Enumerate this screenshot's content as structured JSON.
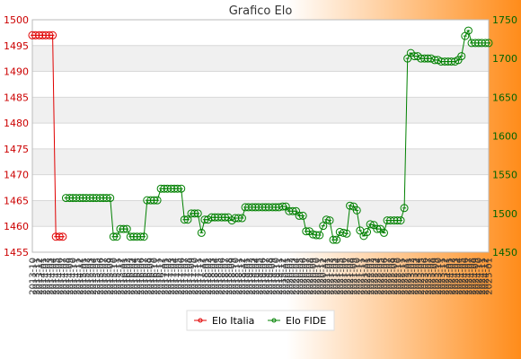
{
  "chart_data": {
    "type": "line",
    "title": "Grafico Elo",
    "left_axis": {
      "min": 1455,
      "max": 1500,
      "ticks": [
        1455,
        1460,
        1465,
        1470,
        1475,
        1480,
        1485,
        1490,
        1495,
        1500
      ]
    },
    "right_axis": {
      "min": 1450,
      "max": 1750,
      "ticks": [
        1450,
        1500,
        1550,
        1600,
        1650,
        1700,
        1750
      ]
    },
    "x_range": [
      2013.75,
      2025.0
    ],
    "x_ticks": [
      "2013-10",
      "2013-11",
      "2013-12",
      "2014-01",
      "2014-02",
      "2014-03",
      "2014-04",
      "2014-05",
      "2014-06",
      "2014-07",
      "2014-08",
      "2014-09",
      "2014-10",
      "2014-11",
      "2014-12",
      "2015-01",
      "2015-02",
      "2015-03",
      "2015-04",
      "2015-05",
      "2015-06",
      "2015-07",
      "2015-08",
      "2015-09",
      "2015-10",
      "2015-11",
      "2015-12",
      "2016-01",
      "2016-02",
      "2016-03",
      "2016-04",
      "2016-05",
      "2016-06",
      "2016-07",
      "2016-08",
      "2016-09",
      "2016-10",
      "2016-11",
      "2016-12",
      "2017-01",
      "2017-02",
      "2017-03",
      "2017-04",
      "2017-05",
      "2017-06",
      "2017-07",
      "2017-08",
      "2017-09",
      "2017-10",
      "2017-11",
      "2017-12",
      "2018-01",
      "2018-02",
      "2018-03",
      "2018-04",
      "2018-05",
      "2018-06",
      "2018-07",
      "2018-08",
      "2018-09",
      "2018-10",
      "2018-11",
      "2018-12",
      "2019-01",
      "2019-02",
      "2019-03",
      "2019-04",
      "2019-05",
      "2019-06",
      "2019-07",
      "2019-08",
      "2019-09",
      "2019-10",
      "2019-11",
      "2019-12",
      "2020-01",
      "2020-02",
      "2020-03",
      "2020-04",
      "2020-05",
      "2020-06",
      "2020-07",
      "2020-08",
      "2020-09",
      "2020-10",
      "2020-11",
      "2020-12",
      "2021-01",
      "2021-02",
      "2021-03",
      "2021-04",
      "2021-05",
      "2021-06",
      "2021-07",
      "2021-08",
      "2021-09",
      "2021-10",
      "2021-11",
      "2021-12",
      "2022-01",
      "2022-02",
      "2022-03",
      "2022-04",
      "2022-05",
      "2022-06",
      "2022-07",
      "2022-08",
      "2022-09",
      "2022-10",
      "2022-11",
      "2022-12",
      "2023-01",
      "2023-02",
      "2023-03",
      "2023-04",
      "2023-05",
      "2023-06",
      "2023-07",
      "2023-08",
      "2023-09",
      "2023-10",
      "2023-11",
      "2023-12",
      "2024-01",
      "2024-02",
      "2024-03",
      "2024-04",
      "2024-05",
      "2024-06",
      "2024-07",
      "2024-08",
      "2024-09",
      "2024-10",
      "2024-11",
      "2024-12",
      "2025-01"
    ],
    "series": [
      {
        "name": "Elo Italia",
        "axis": "left",
        "color": "#e00000",
        "x": [
          2013.75,
          2013.83,
          2013.92,
          2014.0,
          2014.08,
          2014.17,
          2014.25,
          2014.33,
          2014.42,
          2014.5
        ],
        "values": [
          1497,
          1497,
          1497,
          1497,
          1497,
          1497,
          1497,
          1458,
          1458,
          1458
        ]
      },
      {
        "name": "Elo FIDE",
        "axis": "right",
        "color": "#008000",
        "x": [
          2014.58,
          2014.67,
          2014.75,
          2014.83,
          2014.92,
          2015.0,
          2015.08,
          2015.17,
          2015.25,
          2015.33,
          2015.42,
          2015.5,
          2015.58,
          2015.67,
          2015.75,
          2015.83,
          2015.92,
          2016.0,
          2016.08,
          2016.17,
          2016.25,
          2016.33,
          2016.42,
          2016.5,
          2016.58,
          2016.67,
          2016.75,
          2016.83,
          2016.92,
          2017.0,
          2017.08,
          2017.17,
          2017.25,
          2017.33,
          2017.42,
          2017.5,
          2017.58,
          2017.67,
          2017.75,
          2017.83,
          2017.92,
          2018.0,
          2018.08,
          2018.17,
          2018.25,
          2018.33,
          2018.42,
          2018.5,
          2018.58,
          2018.67,
          2018.75,
          2018.83,
          2018.92,
          2019.0,
          2019.08,
          2019.17,
          2019.25,
          2019.33,
          2019.42,
          2019.5,
          2019.58,
          2019.67,
          2019.75,
          2019.83,
          2019.92,
          2020.0,
          2020.08,
          2020.17,
          2020.25,
          2020.33,
          2020.42,
          2020.5,
          2020.58,
          2020.67,
          2020.75,
          2020.83,
          2020.92,
          2021.0,
          2021.08,
          2021.17,
          2021.25,
          2021.33,
          2021.42,
          2021.5,
          2021.58,
          2021.67,
          2021.75,
          2021.83,
          2021.92,
          2022.0,
          2022.08,
          2022.17,
          2022.25,
          2022.33,
          2022.42,
          2022.5,
          2022.58,
          2022.67,
          2022.75,
          2022.83,
          2022.92,
          2023.0,
          2023.08,
          2023.17,
          2023.25,
          2023.33,
          2023.42,
          2023.5,
          2023.58,
          2023.67,
          2023.75,
          2023.83,
          2023.92,
          2024.0,
          2024.08,
          2024.17,
          2024.25,
          2024.33,
          2024.42,
          2024.5,
          2024.58,
          2024.67,
          2024.75,
          2024.83,
          2024.92,
          2025.0
        ],
        "values": [
          1520,
          1520,
          1520,
          1520,
          1520,
          1520,
          1520,
          1520,
          1520,
          1520,
          1520,
          1520,
          1520,
          1520,
          1470,
          1470,
          1480,
          1480,
          1480,
          1470,
          1470,
          1470,
          1470,
          1470,
          1517,
          1517,
          1517,
          1517,
          1532,
          1532,
          1532,
          1532,
          1532,
          1532,
          1532,
          1492,
          1492,
          1500,
          1500,
          1500,
          1475,
          1492,
          1492,
          1495,
          1495,
          1495,
          1495,
          1495,
          1495,
          1491,
          1494,
          1494,
          1494,
          1508,
          1508,
          1508,
          1508,
          1508,
          1508,
          1508,
          1508,
          1508,
          1508,
          1508,
          1509,
          1509,
          1503,
          1503,
          1503,
          1497,
          1497,
          1477,
          1477,
          1473,
          1472,
          1472,
          1484,
          1492,
          1491,
          1466,
          1466,
          1476,
          1475,
          1474,
          1510,
          1509,
          1504,
          1478,
          1471,
          1476,
          1486,
          1485,
          1480,
          1480,
          1475,
          1491,
          1491,
          1491,
          1491,
          1491,
          1507,
          1700,
          1707,
          1703,
          1703,
          1700,
          1700,
          1700,
          1700,
          1698,
          1698,
          1696,
          1696,
          1696,
          1696,
          1696,
          1698,
          1703,
          1729,
          1736,
          1720,
          1720,
          1720,
          1720,
          1720,
          1720
        ]
      }
    ],
    "legend": {
      "position": "bottom-center"
    },
    "grid": true,
    "background": {
      "plot_band_light": "#ffffff",
      "plot_band_dark": "#f0f0f0",
      "gradient_left": "#ffffff",
      "gradient_right": "#ff8c1a"
    }
  }
}
